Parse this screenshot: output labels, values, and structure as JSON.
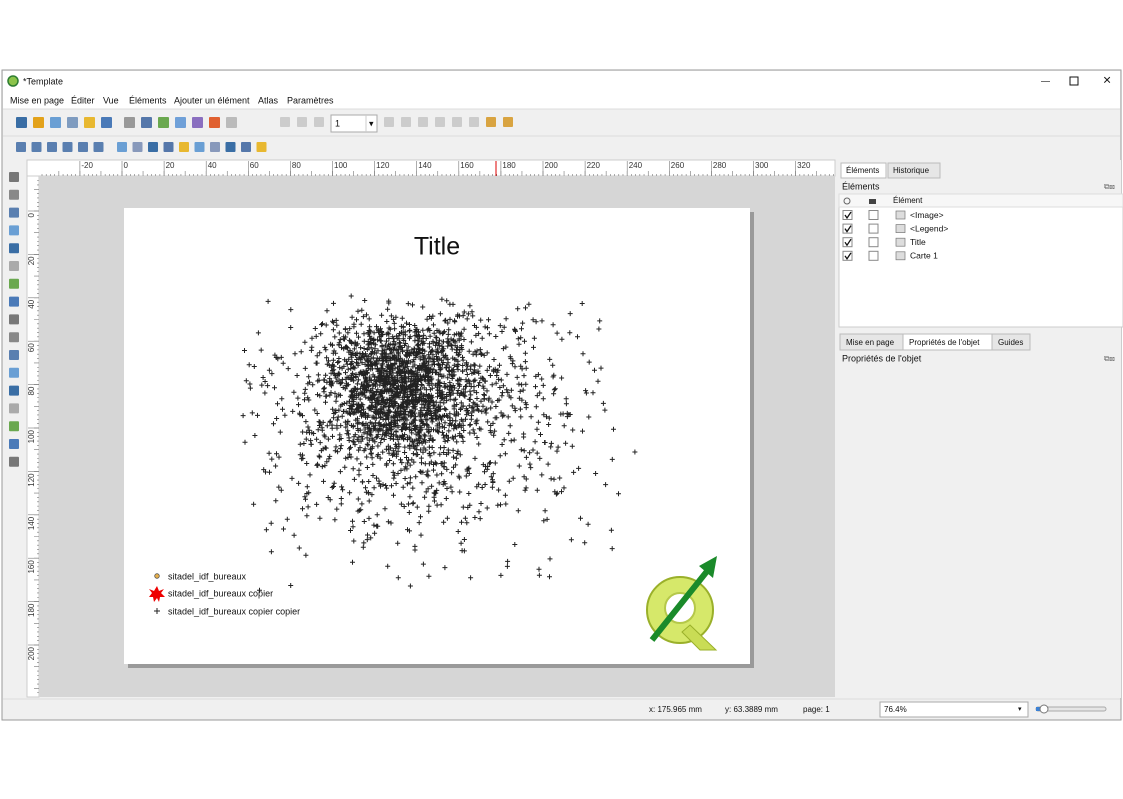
{
  "window": {
    "title": "*Template"
  },
  "menu": [
    "Mise en page",
    "Éditer",
    "Vue",
    "Éléments",
    "Ajouter un élément",
    "Atlas",
    "Paramètres"
  ],
  "toolbar": {
    "page_input": "1"
  },
  "ruler": {
    "horizontal": [
      -20,
      0,
      20,
      40,
      60,
      80,
      100,
      120,
      140,
      160,
      180,
      200,
      220,
      240,
      260,
      280,
      300,
      320
    ],
    "vertical": [
      0,
      20,
      40,
      60,
      80,
      100,
      120,
      140,
      160,
      180,
      200
    ]
  },
  "layout": {
    "title": "Title",
    "legend": [
      "sitadel_idf_bureaux",
      "sitadel_idf_bureaux copier",
      "sitadel_idf_bureaux copier copier"
    ]
  },
  "panel": {
    "tabs": [
      "Éléments",
      "Historique"
    ],
    "heading": "Éléments",
    "column": "Élément",
    "items": [
      {
        "label": "<Image>",
        "visible": true,
        "locked": false
      },
      {
        "label": "<Legend>",
        "visible": true,
        "locked": false
      },
      {
        "label": "Title",
        "visible": true,
        "locked": false
      },
      {
        "label": "Carte 1",
        "visible": true,
        "locked": false
      }
    ],
    "bottom_tabs": [
      "Mise en page",
      "Propriétés de l'objet",
      "Guides"
    ],
    "properties_heading": "Propriétés de l'objet"
  },
  "status": {
    "x": "x: 175.965 mm",
    "y": "y: 63.3889 mm",
    "page": "page: 1",
    "zoom": "76.4%"
  }
}
